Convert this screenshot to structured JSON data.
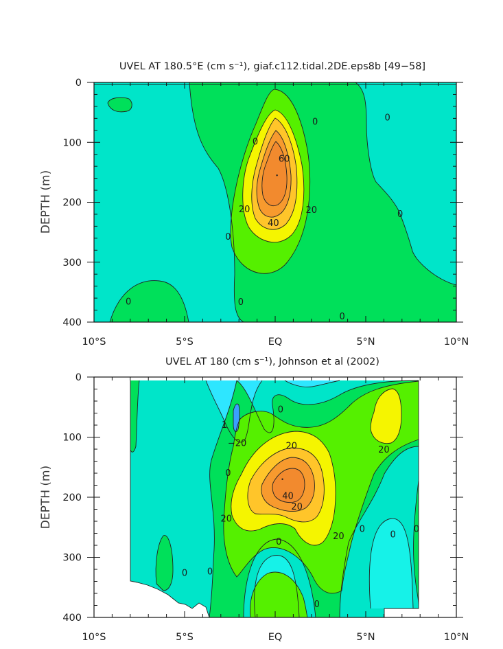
{
  "colors": {
    "neg_20_0": "#2ee6ff",
    "neg_dark": "#3aa0ff",
    "c_0_bg": "#00e5c9",
    "c_bright_cyan": "#16f2e8",
    "c_0_10": "#00e05a",
    "c_10_20": "#55f000",
    "c_20_30": "#f5f500",
    "c_30_40": "#ffc52a",
    "c_40_50": "#f79a2e",
    "c_50_60": "#f28a2e",
    "line": "#222222",
    "axis": "#111111",
    "background": "#ffffff"
  },
  "chart_data": [
    {
      "type": "heatmap",
      "subtype": "filled-contour",
      "title": "UVEL AT 180.5°E (cm s⁻¹), giaf.c112.tidal.2DE.eps8b [49−58]",
      "xlabel": "",
      "ylabel": "DEPTH (m)",
      "xlim": [
        -10,
        10
      ],
      "ylim": [
        400,
        0
      ],
      "x_ticks": [
        "10°S",
        "5°S",
        "EQ",
        "5°N",
        "10°N"
      ],
      "y_ticks": [
        "0",
        "100",
        "200",
        "300",
        "400"
      ],
      "contour_interval": 10,
      "contour_labels": [
        {
          "text": "60",
          "x": 0.5,
          "y": 128
        },
        {
          "text": "40",
          "x": -0.1,
          "y": 235
        },
        {
          "text": "20",
          "x": -1.7,
          "y": 212
        },
        {
          "text": "20",
          "x": 2.0,
          "y": 213
        },
        {
          "text": "0",
          "x": -1.1,
          "y": 99
        },
        {
          "text": "0",
          "x": 2.2,
          "y": 66
        },
        {
          "text": "0",
          "x": 6.2,
          "y": 59
        },
        {
          "text": "0",
          "x": 6.9,
          "y": 220
        },
        {
          "text": "0",
          "x": -2.6,
          "y": 258
        },
        {
          "text": "0",
          "x": -1.9,
          "y": 367
        },
        {
          "text": "0",
          "x": -8.1,
          "y": 366
        },
        {
          "text": "0",
          "x": 3.7,
          "y": 391
        }
      ],
      "max_value_location": {
        "x": 0.1,
        "y": 155,
        "value": 68
      }
    },
    {
      "type": "heatmap",
      "subtype": "filled-contour",
      "title": "UVEL AT 180 (cm s⁻¹), Johnson et al (2002)",
      "xlabel": "",
      "ylabel": "DEPTH (m)",
      "xlim": [
        -10,
        10
      ],
      "ylim": [
        400,
        0
      ],
      "x_ticks": [
        "10°S",
        "5°S",
        "EQ",
        "5°N",
        "10°N"
      ],
      "y_ticks": [
        "0",
        "100",
        "200",
        "300",
        "400"
      ],
      "data_extent_x": [
        -8,
        8
      ],
      "contour_interval": 10,
      "contour_labels": [
        {
          "text": "−20",
          "x": -2.1,
          "y": 110
        },
        {
          "text": "20",
          "x": 6.0,
          "y": 121
        },
        {
          "text": "20",
          "x": 0.9,
          "y": 115
        },
        {
          "text": "40",
          "x": 0.7,
          "y": 198
        },
        {
          "text": "20",
          "x": 1.2,
          "y": 216
        },
        {
          "text": "20",
          "x": -2.7,
          "y": 236
        },
        {
          "text": "20",
          "x": 3.5,
          "y": 265
        },
        {
          "text": "0",
          "x": 0.3,
          "y": 54
        },
        {
          "text": "0",
          "x": -2.6,
          "y": 160
        },
        {
          "text": "0",
          "x": 0.2,
          "y": 274
        },
        {
          "text": "0",
          "x": 4.8,
          "y": 253
        },
        {
          "text": "0",
          "x": 6.5,
          "y": 262
        },
        {
          "text": "0",
          "x": 7.8,
          "y": 253
        },
        {
          "text": "0",
          "x": -3.6,
          "y": 324
        },
        {
          "text": "0",
          "x": 2.3,
          "y": 378
        },
        {
          "text": "0",
          "x": -5.0,
          "y": 326
        },
        {
          "text": "1",
          "x": -2.8,
          "y": 80
        }
      ],
      "max_value_location": {
        "x": 0.4,
        "y": 170,
        "value": 62
      }
    }
  ]
}
